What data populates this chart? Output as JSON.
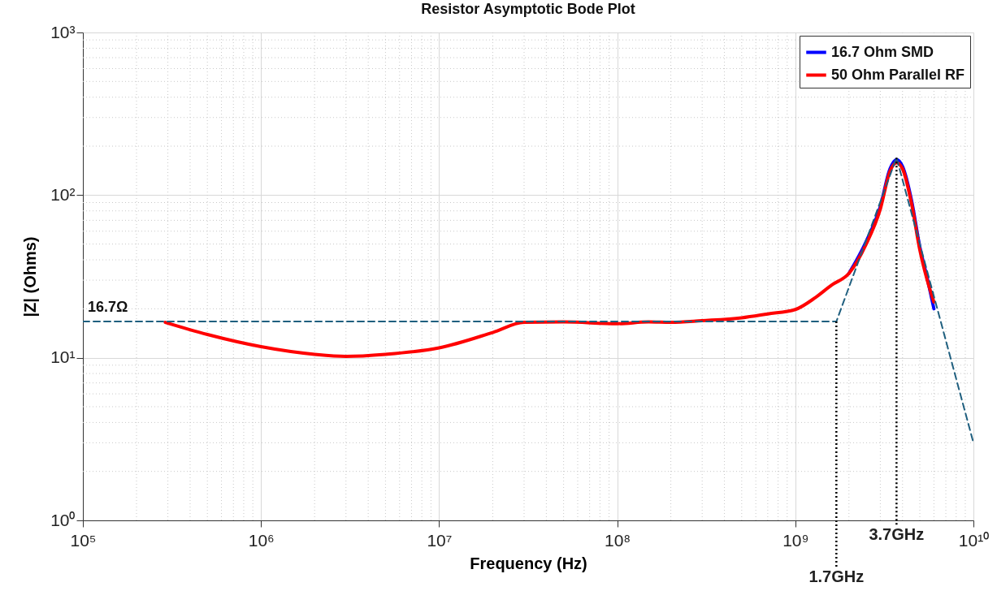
{
  "chart_data": {
    "type": "line",
    "title": "Resistor Asymptotic Bode Plot",
    "xlabel": "Frequency (Hz)",
    "ylabel": "|Z| (Ohms)",
    "log": "xy",
    "grid": true,
    "legend": "top right",
    "xlim": [
      100000,
      10000000000
    ],
    "ylim": [
      1,
      1000
    ],
    "xticks": [
      {
        "value": 100000,
        "label": "10⁵"
      },
      {
        "value": 1000000,
        "label": "10⁶"
      },
      {
        "value": 10000000,
        "label": "10⁷"
      },
      {
        "value": 100000000,
        "label": "10⁸"
      },
      {
        "value": 1000000000,
        "label": "10⁹"
      },
      {
        "value": 10000000000,
        "label": "10¹⁰"
      }
    ],
    "yticks": [
      {
        "value": 1,
        "label": "10⁰"
      },
      {
        "value": 10,
        "label": "10¹"
      },
      {
        "value": 100,
        "label": "10²"
      },
      {
        "value": 1000,
        "label": "10³"
      }
    ],
    "x": [
      290000,
      500000,
      1000000,
      2000000,
      3000000,
      5000000,
      10000000,
      20000000,
      30000000,
      50000000,
      100000000,
      150000000,
      200000000,
      300000000,
      500000000,
      700000000,
      1000000000,
      1300000000,
      1600000000,
      2000000000,
      2500000000,
      3000000000,
      3400000000,
      3700000000,
      4000000000,
      4500000000,
      5000000000,
      5500000000,
      6000000000
    ],
    "series": [
      {
        "name": "16.7 Ohm SMD",
        "color": "#0000ff",
        "line_style": "solid",
        "values": [
          null,
          null,
          null,
          null,
          null,
          null,
          null,
          null,
          null,
          null,
          null,
          null,
          null,
          null,
          null,
          null,
          null,
          null,
          null,
          33,
          52,
          85,
          145,
          165,
          150,
          92,
          48,
          31,
          20
        ]
      },
      {
        "name": "50 Ohm Parallel RF",
        "color": "#ff0000",
        "line_style": "solid",
        "values": [
          16.5,
          13.9,
          11.7,
          10.5,
          10.2,
          10.5,
          11.5,
          14.3,
          16.5,
          16.6,
          16.2,
          16.6,
          16.5,
          16.9,
          17.6,
          18.6,
          19.8,
          23.5,
          28,
          33,
          50,
          82,
          140,
          158,
          145,
          88,
          46,
          30,
          22
        ]
      },
      {
        "type": "line",
        "color": "#1f5f7f",
        "line_style": "dashed",
        "x": [
          100000,
          1700000000,
          3700000000,
          10000000000
        ],
        "values": [
          16.7,
          16.7,
          170,
          3
        ]
      }
    ],
    "ref_lines": [
      {
        "axis": "x",
        "value": 1700000000,
        "label": "1.7GHz",
        "color": "#000000",
        "line_style": "dotted"
      },
      {
        "axis": "x",
        "value": 3700000000,
        "label": "3.7GHz",
        "color": "#000000",
        "line_style": "dotted"
      }
    ],
    "annotations": [
      {
        "text": "16.7Ω",
        "x": 100000,
        "y": 16.7
      }
    ]
  }
}
